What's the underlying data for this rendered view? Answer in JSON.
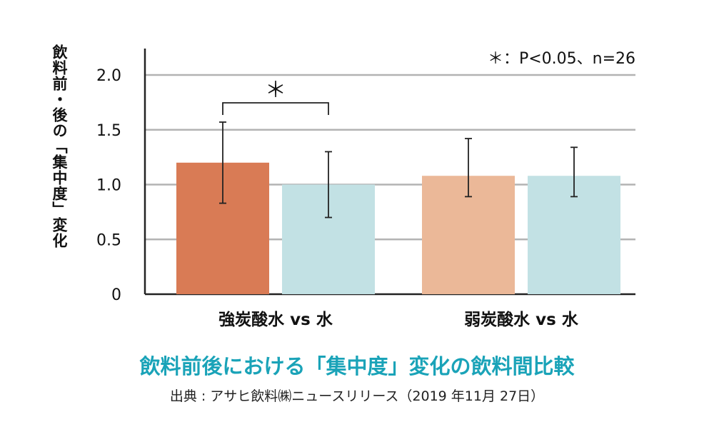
{
  "chart_data": {
    "type": "bar",
    "title": "飲料前後における「集中度」変化の飲料間比較",
    "source": "出典 : アサヒ飲料㈱ニュースリリース（2019 年11月 27日）",
    "note": "＊：P<0.05、n=26",
    "ylabel": "飲料前・後の「集中度」変化",
    "ylim": [
      0,
      2.0
    ],
    "yticks": [
      "0",
      "0.5",
      "1.0",
      "1.5",
      "2.0"
    ],
    "ytick_values": [
      0,
      0.5,
      1.0,
      1.5,
      2.0
    ],
    "grid": true,
    "groups": [
      {
        "label": "強炭酸水 vs 水",
        "bars": [
          {
            "value": 1.2,
            "err_low": 0.83,
            "err_high": 1.57,
            "color": "#d97b55"
          },
          {
            "value": 1.0,
            "err_low": 0.7,
            "err_high": 1.3,
            "color": "#c2e1e4"
          }
        ],
        "significance": "＊"
      },
      {
        "label": "弱炭酸水 vs 水",
        "bars": [
          {
            "value": 1.08,
            "err_low": 0.89,
            "err_high": 1.42,
            "color": "#ebb898"
          },
          {
            "value": 1.08,
            "err_low": 0.89,
            "err_high": 1.34,
            "color": "#c2e1e4"
          }
        ],
        "significance": ""
      }
    ]
  }
}
